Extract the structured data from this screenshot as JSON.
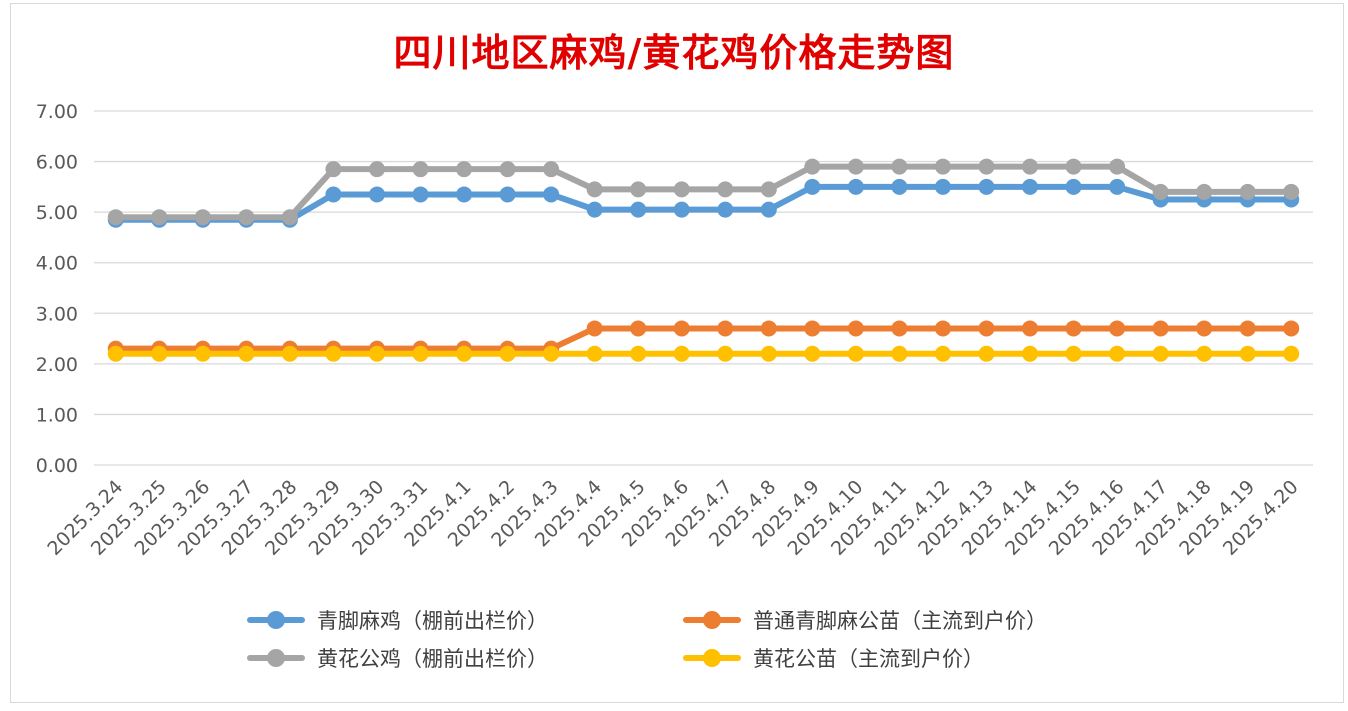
{
  "chart_data": {
    "type": "line",
    "title": "四川地区麻鸡/黄花鸡价格走势图",
    "categories": [
      "2025.3.24",
      "2025.3.25",
      "2025.3.26",
      "2025.3.27",
      "2025.3.28",
      "2025.3.29",
      "2025.3.30",
      "2025.3.31",
      "2025.4.1",
      "2025.4.2",
      "2025.4.3",
      "2025.4.4",
      "2025.4.5",
      "2025.4.6",
      "2025.4.7",
      "2025.4.8",
      "2025.4.9",
      "2025.4.10",
      "2025.4.11",
      "2025.4.12",
      "2025.4.13",
      "2025.4.14",
      "2025.4.15",
      "2025.4.16",
      "2025.4.17",
      "2025.4.18",
      "2025.4.19",
      "2025.4.20"
    ],
    "ylim": [
      0,
      7
    ],
    "yticks": [
      "0.00",
      "1.00",
      "2.00",
      "3.00",
      "4.00",
      "5.00",
      "6.00",
      "7.00"
    ],
    "grid": true,
    "legend_position": "bottom",
    "series": [
      {
        "name": "青脚麻鸡（棚前出栏价）",
        "color": "#5b9bd5",
        "values": [
          4.85,
          4.85,
          4.85,
          4.85,
          4.85,
          5.35,
          5.35,
          5.35,
          5.35,
          5.35,
          5.35,
          5.05,
          5.05,
          5.05,
          5.05,
          5.05,
          5.5,
          5.5,
          5.5,
          5.5,
          5.5,
          5.5,
          5.5,
          5.5,
          5.25,
          5.25,
          5.25,
          5.25
        ]
      },
      {
        "name": "普通青脚麻公苗（主流到户价）",
        "color": "#ed7d31",
        "values": [
          2.3,
          2.3,
          2.3,
          2.3,
          2.3,
          2.3,
          2.3,
          2.3,
          2.3,
          2.3,
          2.3,
          2.7,
          2.7,
          2.7,
          2.7,
          2.7,
          2.7,
          2.7,
          2.7,
          2.7,
          2.7,
          2.7,
          2.7,
          2.7,
          2.7,
          2.7,
          2.7,
          2.7
        ]
      },
      {
        "name": "黄花公鸡（棚前出栏价）",
        "color": "#a5a5a5",
        "values": [
          4.9,
          4.9,
          4.9,
          4.9,
          4.9,
          5.85,
          5.85,
          5.85,
          5.85,
          5.85,
          5.85,
          5.45,
          5.45,
          5.45,
          5.45,
          5.45,
          5.9,
          5.9,
          5.9,
          5.9,
          5.9,
          5.9,
          5.9,
          5.9,
          5.4,
          5.4,
          5.4,
          5.4
        ]
      },
      {
        "name": "黄花公苗（主流到户价）",
        "color": "#ffc000",
        "values": [
          2.2,
          2.2,
          2.2,
          2.2,
          2.2,
          2.2,
          2.2,
          2.2,
          2.2,
          2.2,
          2.2,
          2.2,
          2.2,
          2.2,
          2.2,
          2.2,
          2.2,
          2.2,
          2.2,
          2.2,
          2.2,
          2.2,
          2.2,
          2.2,
          2.2,
          2.2,
          2.2,
          2.2
        ]
      }
    ]
  }
}
